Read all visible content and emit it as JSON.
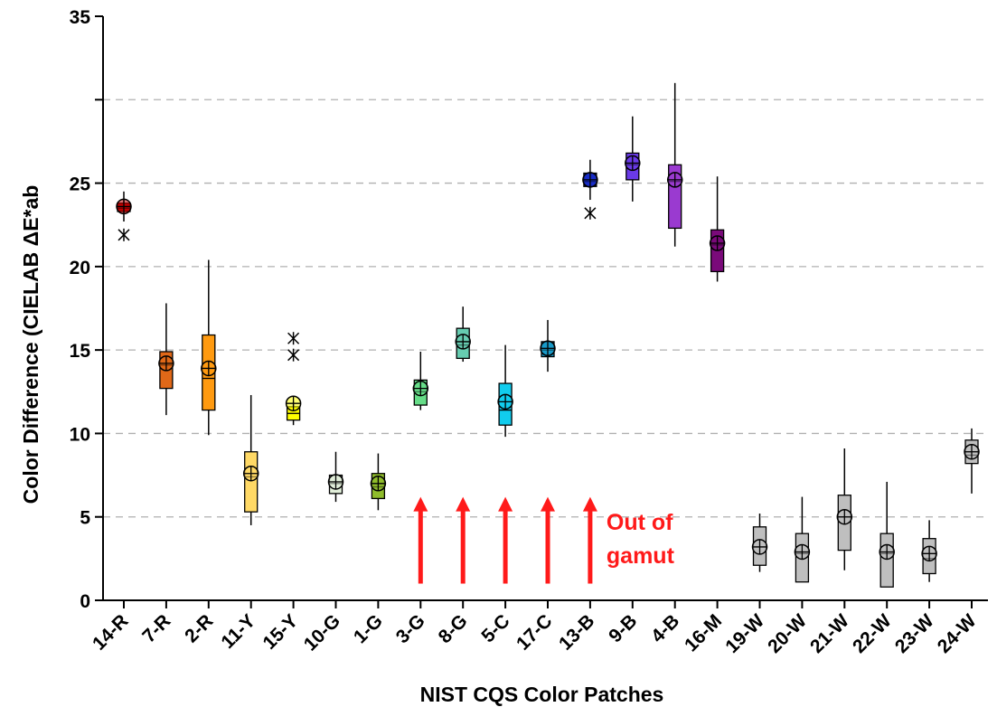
{
  "chart_data": {
    "type": "box",
    "title": "",
    "xlabel": "NIST CQS Color Patches",
    "ylabel": "Color Difference (CIELAB ΔE*ab",
    "ylim": [
      0,
      35
    ],
    "yticks": [
      "0",
      "5",
      "10",
      "15",
      "20",
      "25",
      "",
      "35"
    ],
    "grid": "horizontal-dashed",
    "categories": [
      "14-R",
      "7-R",
      "2-R",
      "11-Y",
      "15-Y",
      "10-G",
      "1-G",
      "3-G",
      "8-G",
      "5-C",
      "17-C",
      "13-B",
      "9-B",
      "4-B",
      "16-M",
      "19-W",
      "20-W",
      "21-W",
      "22-W",
      "23-W",
      "24-W"
    ],
    "boxes": [
      {
        "category": "14-R",
        "whisker_low": 22.7,
        "q1": 23.3,
        "median": 23.5,
        "q3": 23.8,
        "whisker_high": 24.5,
        "mean": 23.6,
        "outliers": [
          21.9
        ],
        "color": "#c00000"
      },
      {
        "category": "7-R",
        "whisker_low": 11.1,
        "q1": 12.7,
        "median": 14.1,
        "q3": 14.9,
        "whisker_high": 17.8,
        "mean": 14.2,
        "outliers": [],
        "color": "#e06818"
      },
      {
        "category": "2-R",
        "whisker_low": 9.9,
        "q1": 11.4,
        "median": 13.3,
        "q3": 15.9,
        "whisker_high": 20.4,
        "mean": 13.9,
        "outliers": [],
        "color": "#ff9a10"
      },
      {
        "category": "11-Y",
        "whisker_low": 4.5,
        "q1": 5.3,
        "median": 7.4,
        "q3": 8.9,
        "whisker_high": 12.3,
        "mean": 7.6,
        "outliers": [],
        "color": "#ffd966"
      },
      {
        "category": "15-Y",
        "whisker_low": 10.5,
        "q1": 10.8,
        "median": 11.2,
        "q3": 11.6,
        "whisker_high": 11.9,
        "mean": 11.8,
        "outliers": [
          14.7,
          15.7
        ],
        "color": "#ffff00"
      },
      {
        "category": "10-G",
        "whisker_low": 5.9,
        "q1": 6.4,
        "median": 7.0,
        "q3": 7.5,
        "whisker_high": 8.9,
        "mean": 7.1,
        "outliers": [],
        "color": "#e2efda"
      },
      {
        "category": "1-G",
        "whisker_low": 5.4,
        "q1": 6.1,
        "median": 6.8,
        "q3": 7.6,
        "whisker_high": 8.8,
        "mean": 7.0,
        "outliers": [],
        "color": "#8fbc2b"
      },
      {
        "category": "3-G",
        "whisker_low": 11.4,
        "q1": 11.7,
        "median": 12.5,
        "q3": 13.2,
        "whisker_high": 14.9,
        "mean": 12.7,
        "outliers": [],
        "color": "#66dd88"
      },
      {
        "category": "8-G",
        "whisker_low": 14.3,
        "q1": 14.5,
        "median": 15.3,
        "q3": 16.3,
        "whisker_high": 17.6,
        "mean": 15.5,
        "outliers": [],
        "color": "#66ccb0"
      },
      {
        "category": "5-C",
        "whisker_low": 9.8,
        "q1": 10.5,
        "median": 11.4,
        "q3": 13.0,
        "whisker_high": 15.3,
        "mean": 11.9,
        "outliers": [],
        "color": "#11ccee"
      },
      {
        "category": "17-C",
        "whisker_low": 13.7,
        "q1": 14.6,
        "median": 15.0,
        "q3": 15.5,
        "whisker_high": 16.8,
        "mean": 15.1,
        "outliers": [],
        "color": "#1a9ac8"
      },
      {
        "category": "13-B",
        "whisker_low": 24.0,
        "q1": 24.8,
        "median": 25.1,
        "q3": 25.6,
        "whisker_high": 26.4,
        "mean": 25.2,
        "outliers": [
          23.2
        ],
        "color": "#1a2ec8"
      },
      {
        "category": "9-B",
        "whisker_low": 23.9,
        "q1": 25.2,
        "median": 26.1,
        "q3": 26.8,
        "whisker_high": 29.0,
        "mean": 26.2,
        "outliers": [],
        "color": "#6a3ae8"
      },
      {
        "category": "4-B",
        "whisker_low": 21.2,
        "q1": 22.3,
        "median": 25.1,
        "q3": 26.1,
        "whisker_high": 31.0,
        "mean": 25.2,
        "outliers": [],
        "color": "#9a3ad0"
      },
      {
        "category": "16-M",
        "whisker_low": 19.1,
        "q1": 19.7,
        "median": 21.3,
        "q3": 22.2,
        "whisker_high": 25.4,
        "mean": 21.4,
        "outliers": [],
        "color": "#7a0a7a"
      },
      {
        "category": "19-W",
        "whisker_low": 1.7,
        "q1": 2.1,
        "median": 3.2,
        "q3": 4.4,
        "whisker_high": 5.2,
        "mean": 3.2,
        "outliers": [],
        "color": "#bfbfbf"
      },
      {
        "category": "20-W",
        "whisker_low": 1.1,
        "q1": 1.1,
        "median": 2.8,
        "q3": 4.0,
        "whisker_high": 6.2,
        "mean": 2.9,
        "outliers": [],
        "color": "#bfbfbf"
      },
      {
        "category": "21-W",
        "whisker_low": 1.8,
        "q1": 3.0,
        "median": 5.0,
        "q3": 6.3,
        "whisker_high": 9.1,
        "mean": 5.0,
        "outliers": [],
        "color": "#bfbfbf"
      },
      {
        "category": "22-W",
        "whisker_low": 0.8,
        "q1": 0.8,
        "median": 2.8,
        "q3": 4.0,
        "whisker_high": 7.1,
        "mean": 2.9,
        "outliers": [],
        "color": "#bfbfbf"
      },
      {
        "category": "23-W",
        "whisker_low": 1.1,
        "q1": 1.6,
        "median": 2.5,
        "q3": 3.7,
        "whisker_high": 4.8,
        "mean": 2.8,
        "outliers": [],
        "color": "#bfbfbf"
      },
      {
        "category": "24-W",
        "whisker_low": 6.4,
        "q1": 8.2,
        "median": 8.7,
        "q3": 9.6,
        "whisker_high": 10.3,
        "mean": 8.9,
        "outliers": [],
        "color": "#bfbfbf"
      }
    ],
    "arrows": {
      "categories": [
        "3-G",
        "8-G",
        "5-C",
        "17-C",
        "13-B"
      ],
      "from": 1.0,
      "to": 6.2,
      "color": "#ff1a1a"
    },
    "annotation": {
      "lines": [
        "Out of",
        "gamut"
      ],
      "color": "#ff1a1a"
    }
  }
}
